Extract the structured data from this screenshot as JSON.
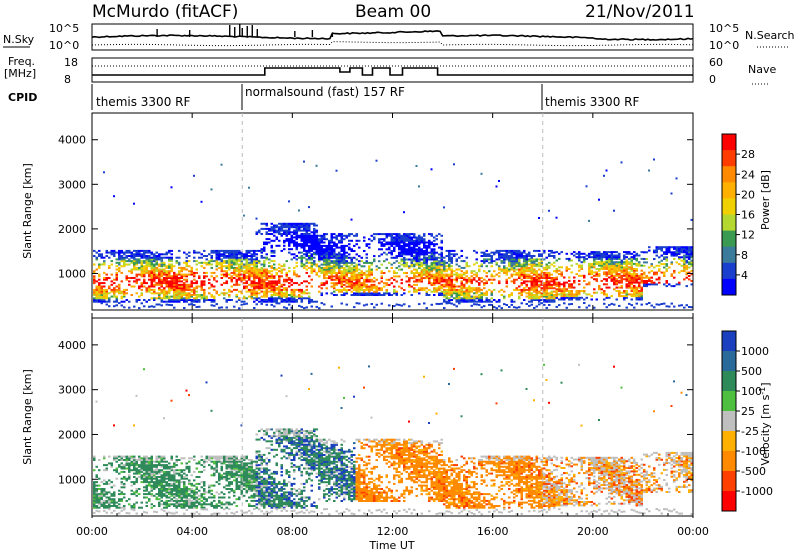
{
  "header": {
    "station": "McMurdo (fitACF)",
    "beam": "Beam 00",
    "date": "21/Nov/2011"
  },
  "noise_panel": {
    "left_label": "N.Sky",
    "right_label": "N.Search",
    "left_ticks": [
      "10^5",
      "10^0"
    ],
    "right_ticks": [
      "10^5",
      "10^0"
    ]
  },
  "freq_panel": {
    "left_label_line1": "Freq.",
    "left_label_line2": "[MHz]",
    "right_label": "Nave",
    "left_ticks": [
      "18",
      "8"
    ],
    "right_ticks": [
      "60",
      "0"
    ]
  },
  "cpid_panel": {
    "label": "CPID",
    "segments": [
      {
        "text": "themis 3300 RF",
        "start_hour": 0
      },
      {
        "text": "normalsound (fast) 157 RF",
        "start_hour": 6
      },
      {
        "text": "themis 3300 RF",
        "start_hour": 18
      }
    ]
  },
  "x_axis": {
    "label": "Time UT",
    "ticks": [
      "00:00",
      "04:00",
      "08:00",
      "12:00",
      "16:00",
      "20:00",
      "00:00"
    ],
    "range_hours": [
      0,
      24
    ]
  },
  "chart_data": [
    {
      "type": "heatmap",
      "name": "power",
      "ylabel": "Slant Range [km]",
      "yticks": [
        1000,
        2000,
        3000,
        4000
      ],
      "ylim": [
        180,
        4600
      ],
      "colorbar_label": "Power [dB]",
      "colorbar_ticks": [
        "28",
        "24",
        "20",
        "16",
        "12",
        "8",
        "4"
      ],
      "colorbar_colors": [
        "#ff0000",
        "#ff3d00",
        "#ff8a00",
        "#ffb000",
        "#f0d000",
        "#b4d830",
        "#3a9a52",
        "#3a7a9a",
        "#1a3fcf",
        "#0000ff"
      ],
      "field": "power"
    },
    {
      "type": "heatmap",
      "name": "velocity",
      "ylabel": "Slant Range [km]",
      "yticks": [
        1000,
        2000,
        3000,
        4000
      ],
      "ylim": [
        180,
        4600
      ],
      "colorbar_label": "Velocity [m s^-1]",
      "colorbar_ticks": [
        "1000",
        "500",
        "100",
        "25",
        "-25",
        "-100",
        "-500",
        "-1000"
      ],
      "colorbar_colors": [
        "#1a3fbf",
        "#2a6a9a",
        "#2f8a5a",
        "#4fbf3f",
        "#bfbfbf",
        "#ffb000",
        "#ff8a00",
        "#ff4000",
        "#ff0000"
      ],
      "field": "velocity"
    }
  ]
}
